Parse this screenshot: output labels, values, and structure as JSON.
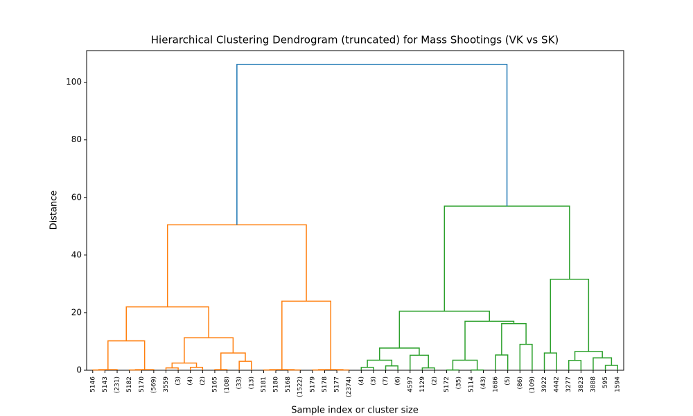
{
  "chart_data": {
    "type": "dendrogram",
    "title": "Hierarchical Clustering Dendrogram (truncated) for Mass Shootings (VK vs SK)",
    "xlabel": "Sample index or cluster size",
    "ylabel": "Distance",
    "ylim": [
      0,
      111
    ],
    "yticks": [
      0,
      20,
      40,
      60,
      80,
      100
    ],
    "leaves": [
      "5146",
      "5143",
      "(231)",
      "5182",
      "5170",
      "(569)",
      "3559",
      "(3)",
      "(4)",
      "(2)",
      "5165",
      "(108)",
      "(33)",
      "(13)",
      "5181",
      "5180",
      "5168",
      "(1522)",
      "5179",
      "5178",
      "5177",
      "(2374)",
      "(4)",
      "(3)",
      "(7)",
      "(6)",
      "4597",
      "1129",
      "(2)",
      "5172",
      "(35)",
      "5114",
      "(43)",
      "1686",
      "(5)",
      "(86)",
      "(109)",
      "3922",
      "4442",
      "3277",
      "3823",
      "3888",
      "595",
      "1594"
    ],
    "merges": [
      {
        "left": 0,
        "right": 1,
        "height": 0.1,
        "color": "#ff7f0e"
      },
      {
        "left": 44,
        "right": 2,
        "height": 0.2,
        "color": "#ff7f0e"
      },
      {
        "left": 3,
        "right": 4,
        "height": 0.1,
        "color": "#ff7f0e"
      },
      {
        "left": 46,
        "right": 5,
        "height": 0.2,
        "color": "#ff7f0e"
      },
      {
        "left": 45,
        "right": 47,
        "height": 10.2,
        "color": "#ff7f0e"
      },
      {
        "left": 6,
        "right": 7,
        "height": 0.8,
        "color": "#ff7f0e"
      },
      {
        "left": 8,
        "right": 9,
        "height": 1.0,
        "color": "#ff7f0e"
      },
      {
        "left": 49,
        "right": 50,
        "height": 2.5,
        "color": "#ff7f0e"
      },
      {
        "left": 10,
        "right": 11,
        "height": 0.2,
        "color": "#ff7f0e"
      },
      {
        "left": 12,
        "right": 13,
        "height": 3.1,
        "color": "#ff7f0e"
      },
      {
        "left": 52,
        "right": 53,
        "height": 6.0,
        "color": "#ff7f0e"
      },
      {
        "left": 51,
        "right": 54,
        "height": 11.3,
        "color": "#ff7f0e"
      },
      {
        "left": 48,
        "right": 55,
        "height": 22.0,
        "color": "#ff7f0e"
      },
      {
        "left": 14,
        "right": 15,
        "height": 0.1,
        "color": "#ff7f0e"
      },
      {
        "left": 16,
        "right": 17,
        "height": 0.1,
        "color": "#ff7f0e"
      },
      {
        "left": 57,
        "right": 58,
        "height": 0.2,
        "color": "#ff7f0e"
      },
      {
        "left": 18,
        "right": 19,
        "height": 0.1,
        "color": "#ff7f0e"
      },
      {
        "left": 20,
        "right": 21,
        "height": 0.1,
        "color": "#ff7f0e"
      },
      {
        "left": 60,
        "right": 61,
        "height": 0.2,
        "color": "#ff7f0e"
      },
      {
        "left": 59,
        "right": 62,
        "height": 24.0,
        "color": "#ff7f0e"
      },
      {
        "left": 56,
        "right": 63,
        "height": 50.5,
        "color": "#ff7f0e"
      },
      {
        "left": 22,
        "right": 23,
        "height": 1.0,
        "color": "#2ca02c"
      },
      {
        "left": 24,
        "right": 25,
        "height": 1.5,
        "color": "#2ca02c"
      },
      {
        "left": 65,
        "right": 66,
        "height": 3.5,
        "color": "#2ca02c"
      },
      {
        "left": 27,
        "right": 28,
        "height": 0.8,
        "color": "#2ca02c"
      },
      {
        "left": 26,
        "right": 68,
        "height": 5.2,
        "color": "#2ca02c"
      },
      {
        "left": 67,
        "right": 69,
        "height": 7.7,
        "color": "#2ca02c"
      },
      {
        "left": 29,
        "right": 30,
        "height": 0.1,
        "color": "#2ca02c"
      },
      {
        "left": 31,
        "right": 32,
        "height": 0.1,
        "color": "#2ca02c"
      },
      {
        "left": 71,
        "right": 72,
        "height": 3.5,
        "color": "#2ca02c"
      },
      {
        "left": 33,
        "right": 34,
        "height": 5.3,
        "color": "#2ca02c"
      },
      {
        "left": 35,
        "right": 36,
        "height": 9.0,
        "color": "#2ca02c"
      },
      {
        "left": 74,
        "right": 75,
        "height": 16.2,
        "color": "#2ca02c"
      },
      {
        "left": 73,
        "right": 76,
        "height": 17.0,
        "color": "#2ca02c"
      },
      {
        "left": 70,
        "right": 77,
        "height": 20.5,
        "color": "#2ca02c"
      },
      {
        "left": 37,
        "right": 38,
        "height": 6.0,
        "color": "#2ca02c"
      },
      {
        "left": 39,
        "right": 40,
        "height": 3.4,
        "color": "#2ca02c"
      },
      {
        "left": 42,
        "right": 43,
        "height": 1.7,
        "color": "#2ca02c"
      },
      {
        "left": 41,
        "right": 81,
        "height": 4.3,
        "color": "#2ca02c"
      },
      {
        "left": 80,
        "right": 82,
        "height": 6.5,
        "color": "#2ca02c"
      },
      {
        "left": 79,
        "right": 83,
        "height": 31.6,
        "color": "#2ca02c"
      },
      {
        "left": 78,
        "right": 84,
        "height": 57.0,
        "color": "#2ca02c"
      },
      {
        "left": 64,
        "right": 85,
        "height": 106.2,
        "color": "#1f77b4"
      }
    ]
  }
}
